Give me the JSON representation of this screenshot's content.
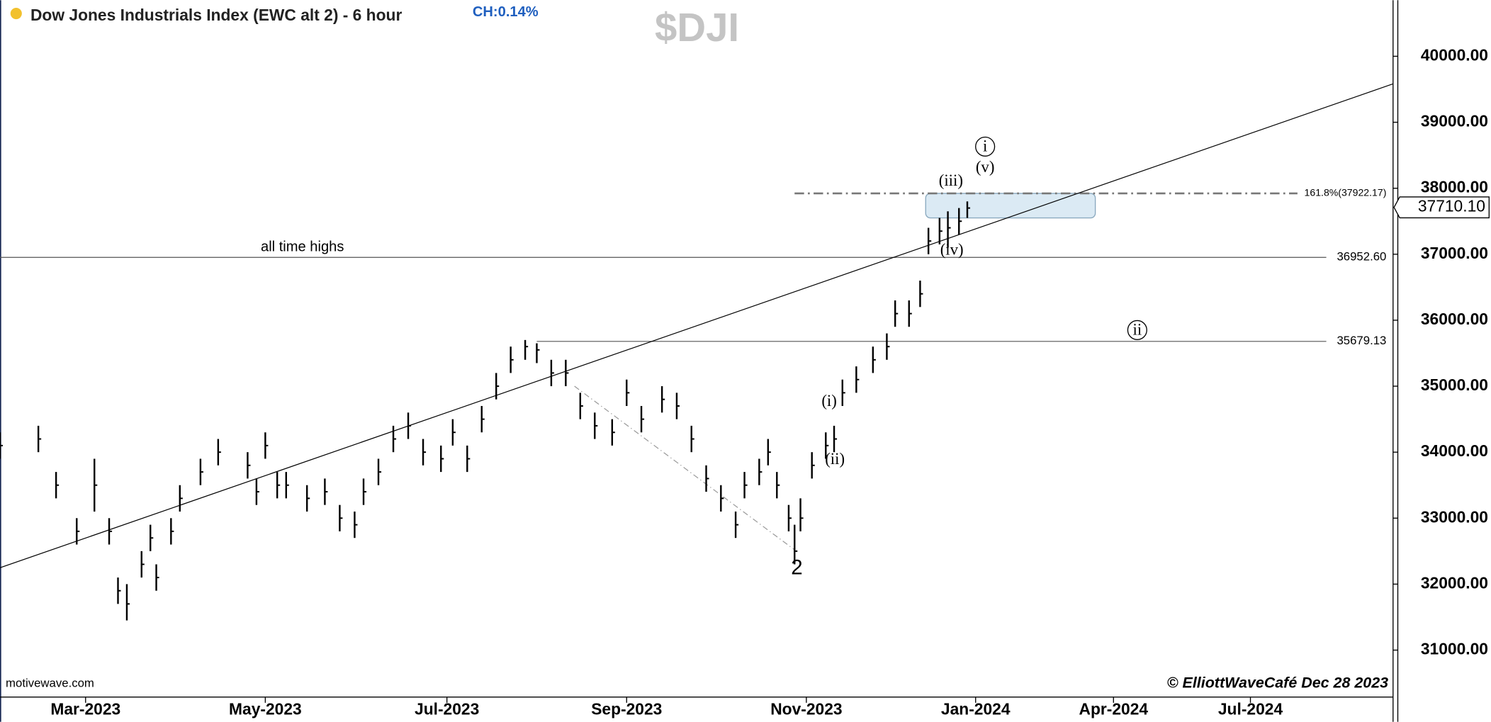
{
  "chart_data": {
    "type": "ohlc",
    "title": "Dow Jones Industrials Index (EWC alt 2) - 6 hour",
    "subtitle": "CH:0.14%",
    "symbol": "$DJI",
    "note": "all time highs",
    "source": "motivewave.com",
    "copyright": "© ElliottWaveCafé Dec 28 2023",
    "color": "#000000",
    "x": [
      "2023-01-31",
      "2023-02-13",
      "2023-02-19",
      "2023-02-26",
      "2023-03-04",
      "2023-03-09",
      "2023-03-12",
      "2023-03-15",
      "2023-03-20",
      "2023-03-23",
      "2023-03-25",
      "2023-03-30",
      "2023-04-02",
      "2023-04-09",
      "2023-04-15",
      "2023-04-25",
      "2023-04-28",
      "2023-05-01",
      "2023-05-05",
      "2023-05-08",
      "2023-05-15",
      "2023-05-21",
      "2023-05-26",
      "2023-05-31",
      "2023-06-03",
      "2023-06-08",
      "2023-06-13",
      "2023-06-18",
      "2023-06-23",
      "2023-06-29",
      "2023-07-03",
      "2023-07-08",
      "2023-07-13",
      "2023-07-18",
      "2023-07-23",
      "2023-07-28",
      "2023-08-01",
      "2023-08-06",
      "2023-08-11",
      "2023-08-16",
      "2023-08-21",
      "2023-08-27",
      "2023-09-01",
      "2023-09-06",
      "2023-09-13",
      "2023-09-18",
      "2023-09-23",
      "2023-09-28",
      "2023-10-03",
      "2023-10-08",
      "2023-10-11",
      "2023-10-16",
      "2023-10-19",
      "2023-10-22",
      "2023-10-26",
      "2023-10-28",
      "2023-10-30",
      "2023-11-03",
      "2023-11-08",
      "2023-11-11",
      "2023-11-14",
      "2023-11-19",
      "2023-11-25",
      "2023-11-30",
      "2023-12-03",
      "2023-12-08",
      "2023-12-12",
      "2023-12-15",
      "2023-12-19",
      "2023-12-22",
      "2023-12-26",
      "2023-12-29"
    ],
    "high": [
      34300,
      34400,
      33700,
      33000,
      33900,
      33000,
      32100,
      32000,
      32500,
      32900,
      32300,
      33000,
      33500,
      33900,
      34200,
      34000,
      33600,
      34300,
      33700,
      33700,
      33500,
      33600,
      33200,
      33100,
      33600,
      33900,
      34400,
      34600,
      34200,
      34100,
      34500,
      34100,
      34700,
      35200,
      35600,
      35700,
      35650,
      35400,
      35400,
      34900,
      34600,
      34500,
      35100,
      34700,
      35000,
      34900,
      34400,
      33800,
      33500,
      33100,
      33700,
      33900,
      34200,
      33700,
      33200,
      32900,
      33300,
      34000,
      34300,
      34400,
      35100,
      35300,
      35600,
      35800,
      36300,
      36300,
      36600,
      37400,
      37550,
      37650,
      37700,
      37800
    ],
    "low": [
      33900,
      34000,
      33300,
      32600,
      33100,
      32600,
      31700,
      31450,
      32100,
      32500,
      31900,
      32600,
      33100,
      33500,
      33800,
      33600,
      33200,
      33900,
      33300,
      33300,
      33100,
      33200,
      32800,
      32700,
      33200,
      33500,
      34000,
      34200,
      33800,
      33700,
      34100,
      33700,
      34300,
      34800,
      35200,
      35400,
      35350,
      35000,
      35000,
      34500,
      34200,
      34100,
      34700,
      34300,
      34600,
      34500,
      34000,
      33400,
      33100,
      32700,
      33300,
      33500,
      33800,
      33300,
      32800,
      32300,
      32800,
      33600,
      33900,
      34000,
      34700,
      34900,
      35200,
      35400,
      35900,
      35900,
      36200,
      37000,
      37150,
      37100,
      37300,
      37550
    ],
    "close": [
      34100,
      34200,
      33500,
      32800,
      33500,
      32800,
      31900,
      31700,
      32300,
      32700,
      32100,
      32800,
      33300,
      33700,
      34000,
      33800,
      33400,
      34100,
      33500,
      33500,
      33300,
      33400,
      33000,
      32900,
      33400,
      33700,
      34200,
      34400,
      34000,
      33900,
      34300,
      33900,
      34500,
      35000,
      35400,
      35600,
      35550,
      35200,
      35200,
      34700,
      34400,
      34300,
      34900,
      34500,
      34800,
      34700,
      34200,
      33600,
      33300,
      32900,
      33500,
      33700,
      34000,
      33500,
      33000,
      32500,
      33000,
      33800,
      34100,
      34200,
      34900,
      35100,
      35400,
      35600,
      36100,
      36100,
      36400,
      37200,
      37350,
      37400,
      37500,
      37700
    ],
    "xlim": [
      "2023-01-31",
      "2024-10-03"
    ],
    "xticks": [
      {
        "value": "2023-03-01",
        "label": "Mar-2023"
      },
      {
        "value": "2023-05-01",
        "label": "May-2023"
      },
      {
        "value": "2023-07-01",
        "label": "Jul-2023"
      },
      {
        "value": "2023-09-01",
        "label": "Sep-2023"
      },
      {
        "value": "2023-11-01",
        "label": "Nov-2023"
      },
      {
        "value": "2024-01-01",
        "label": "Jan-2024"
      },
      {
        "value": "2024-04-01",
        "label": "Apr-2024"
      },
      {
        "value": "2024-07-01",
        "label": "Jul-2024"
      }
    ],
    "ylim": [
      30288,
      40850
    ],
    "yticks": [
      {
        "value": 31000,
        "label": "31000.00"
      },
      {
        "value": 32000,
        "label": "32000.00"
      },
      {
        "value": 33000,
        "label": "33000.00"
      },
      {
        "value": 34000,
        "label": "34000.00"
      },
      {
        "value": 35000,
        "label": "35000.00"
      },
      {
        "value": 36000,
        "label": "36000.00"
      },
      {
        "value": 37000,
        "label": "37000.00"
      },
      {
        "value": 38000,
        "label": "38000.00"
      },
      {
        "value": 39000,
        "label": "39000.00"
      },
      {
        "value": 40000,
        "label": "40000.00"
      }
    ],
    "levels": [
      {
        "value": 36952.6,
        "label": "36952.60",
        "x": [
          "2023-01-31",
          "2024-08-20"
        ]
      },
      {
        "value": 35679.13,
        "label": "35679.13",
        "x": [
          "2023-08-01",
          "2024-08-20"
        ]
      }
    ],
    "fib": {
      "value": 37922.17,
      "label": "161.8%(37922.17)",
      "x": [
        "2023-10-28",
        "2024-08-01"
      ]
    },
    "last_price": {
      "value": 37710.1,
      "label": "37710.10"
    },
    "trendlines": [
      {
        "x": [
          "2023-01-31",
          "2024-10-03"
        ],
        "y": [
          32248,
          39582
        ]
      },
      {
        "x": [
          "2023-08-14",
          "2023-10-28"
        ],
        "y": [
          35000,
          32520
        ]
      }
    ],
    "target_box": {
      "x": [
        "2023-12-14",
        "2024-03-20"
      ],
      "y": [
        37550,
        37922.17
      ]
    },
    "wave_labels": [
      "(iii)",
      "(v)",
      "i",
      "(iv)",
      "(i)",
      "(ii)",
      "2",
      "ii"
    ]
  }
}
